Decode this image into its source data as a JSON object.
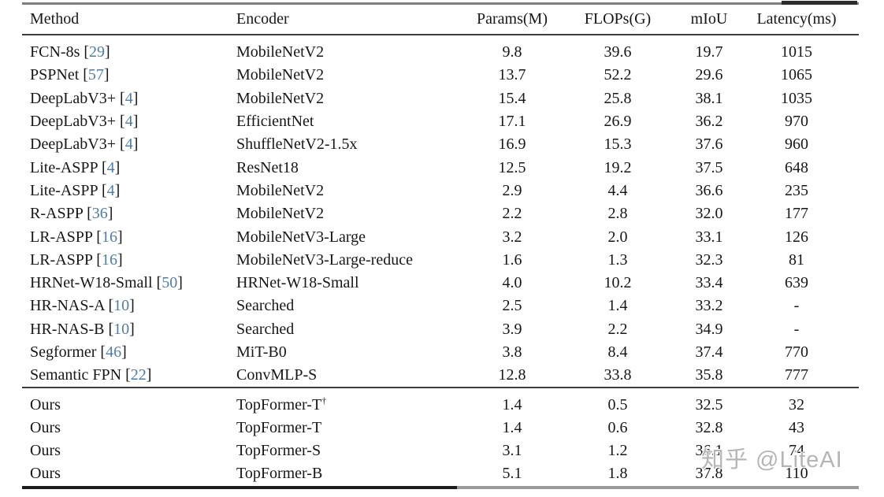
{
  "table": {
    "columns": [
      "Method",
      "Encoder",
      "Params(M)",
      "FLOPs(G)",
      "mIoU",
      "Latency(ms)"
    ],
    "citation_color": "#4d7ea8",
    "sections": [
      {
        "rows": [
          {
            "method": "FCN-8s",
            "cite": "29",
            "encoder": "MobileNetV2",
            "encoder_sup": "",
            "params": "9.8",
            "flops": "39.6",
            "miou": "19.7",
            "latency": "1015"
          },
          {
            "method": "PSPNet",
            "cite": "57",
            "encoder": "MobileNetV2",
            "encoder_sup": "",
            "params": "13.7",
            "flops": "52.2",
            "miou": "29.6",
            "latency": "1065"
          },
          {
            "method": "DeepLabV3+",
            "cite": "4",
            "encoder": "MobileNetV2",
            "encoder_sup": "",
            "params": "15.4",
            "flops": "25.8",
            "miou": "38.1",
            "latency": "1035"
          },
          {
            "method": "DeepLabV3+",
            "cite": "4",
            "encoder": "EfficientNet",
            "encoder_sup": "",
            "params": "17.1",
            "flops": "26.9",
            "miou": "36.2",
            "latency": "970"
          },
          {
            "method": "DeepLabV3+",
            "cite": "4",
            "encoder": "ShuffleNetV2-1.5x",
            "encoder_sup": "",
            "params": "16.9",
            "flops": "15.3",
            "miou": "37.6",
            "latency": "960"
          },
          {
            "method": "Lite-ASPP",
            "cite": "4",
            "encoder": "ResNet18",
            "encoder_sup": "",
            "params": "12.5",
            "flops": "19.2",
            "miou": "37.5",
            "latency": "648"
          },
          {
            "method": "Lite-ASPP",
            "cite": "4",
            "encoder": "MobileNetV2",
            "encoder_sup": "",
            "params": "2.9",
            "flops": "4.4",
            "miou": "36.6",
            "latency": "235"
          },
          {
            "method": "R-ASPP",
            "cite": "36",
            "encoder": "MobileNetV2",
            "encoder_sup": "",
            "params": "2.2",
            "flops": "2.8",
            "miou": "32.0",
            "latency": "177"
          },
          {
            "method": "LR-ASPP",
            "cite": "16",
            "encoder": "MobileNetV3-Large",
            "encoder_sup": "",
            "params": "3.2",
            "flops": "2.0",
            "miou": "33.1",
            "latency": "126"
          },
          {
            "method": "LR-ASPP",
            "cite": "16",
            "encoder": "MobileNetV3-Large-reduce",
            "encoder_sup": "",
            "params": "1.6",
            "flops": "1.3",
            "miou": "32.3",
            "latency": "81"
          },
          {
            "method": "HRNet-W18-Small",
            "cite": "50",
            "encoder": "HRNet-W18-Small",
            "encoder_sup": "",
            "params": "4.0",
            "flops": "10.2",
            "miou": "33.4",
            "latency": "639"
          },
          {
            "method": "HR-NAS-A",
            "cite": "10",
            "encoder": "Searched",
            "encoder_sup": "",
            "params": "2.5",
            "flops": "1.4",
            "miou": "33.2",
            "latency": "-"
          },
          {
            "method": "HR-NAS-B",
            "cite": "10",
            "encoder": "Searched",
            "encoder_sup": "",
            "params": "3.9",
            "flops": "2.2",
            "miou": "34.9",
            "latency": "-"
          },
          {
            "method": "Segformer",
            "cite": "46",
            "encoder": "MiT-B0",
            "encoder_sup": "",
            "params": "3.8",
            "flops": "8.4",
            "miou": "37.4",
            "latency": "770"
          },
          {
            "method": "Semantic FPN",
            "cite": "22",
            "encoder": "ConvMLP-S",
            "encoder_sup": "",
            "params": "12.8",
            "flops": "33.8",
            "miou": "35.8",
            "latency": "777"
          }
        ]
      },
      {
        "rows": [
          {
            "method": "Ours",
            "cite": "",
            "encoder": "TopFormer-T",
            "encoder_sup": "†",
            "params": "1.4",
            "flops": "0.5",
            "miou": "32.5",
            "latency": "32"
          },
          {
            "method": "Ours",
            "cite": "",
            "encoder": "TopFormer-T",
            "encoder_sup": "",
            "params": "1.4",
            "flops": "0.6",
            "miou": "32.8",
            "latency": "43"
          },
          {
            "method": "Ours",
            "cite": "",
            "encoder": "TopFormer-S",
            "encoder_sup": "",
            "params": "3.1",
            "flops": "1.2",
            "miou": "36.1",
            "latency": "74"
          },
          {
            "method": "Ours",
            "cite": "",
            "encoder": "TopFormer-B",
            "encoder_sup": "",
            "params": "5.1",
            "flops": "1.8",
            "miou": "37.8",
            "latency": "110"
          }
        ]
      }
    ]
  },
  "watermark": {
    "text": "知乎 @LiteAI"
  }
}
